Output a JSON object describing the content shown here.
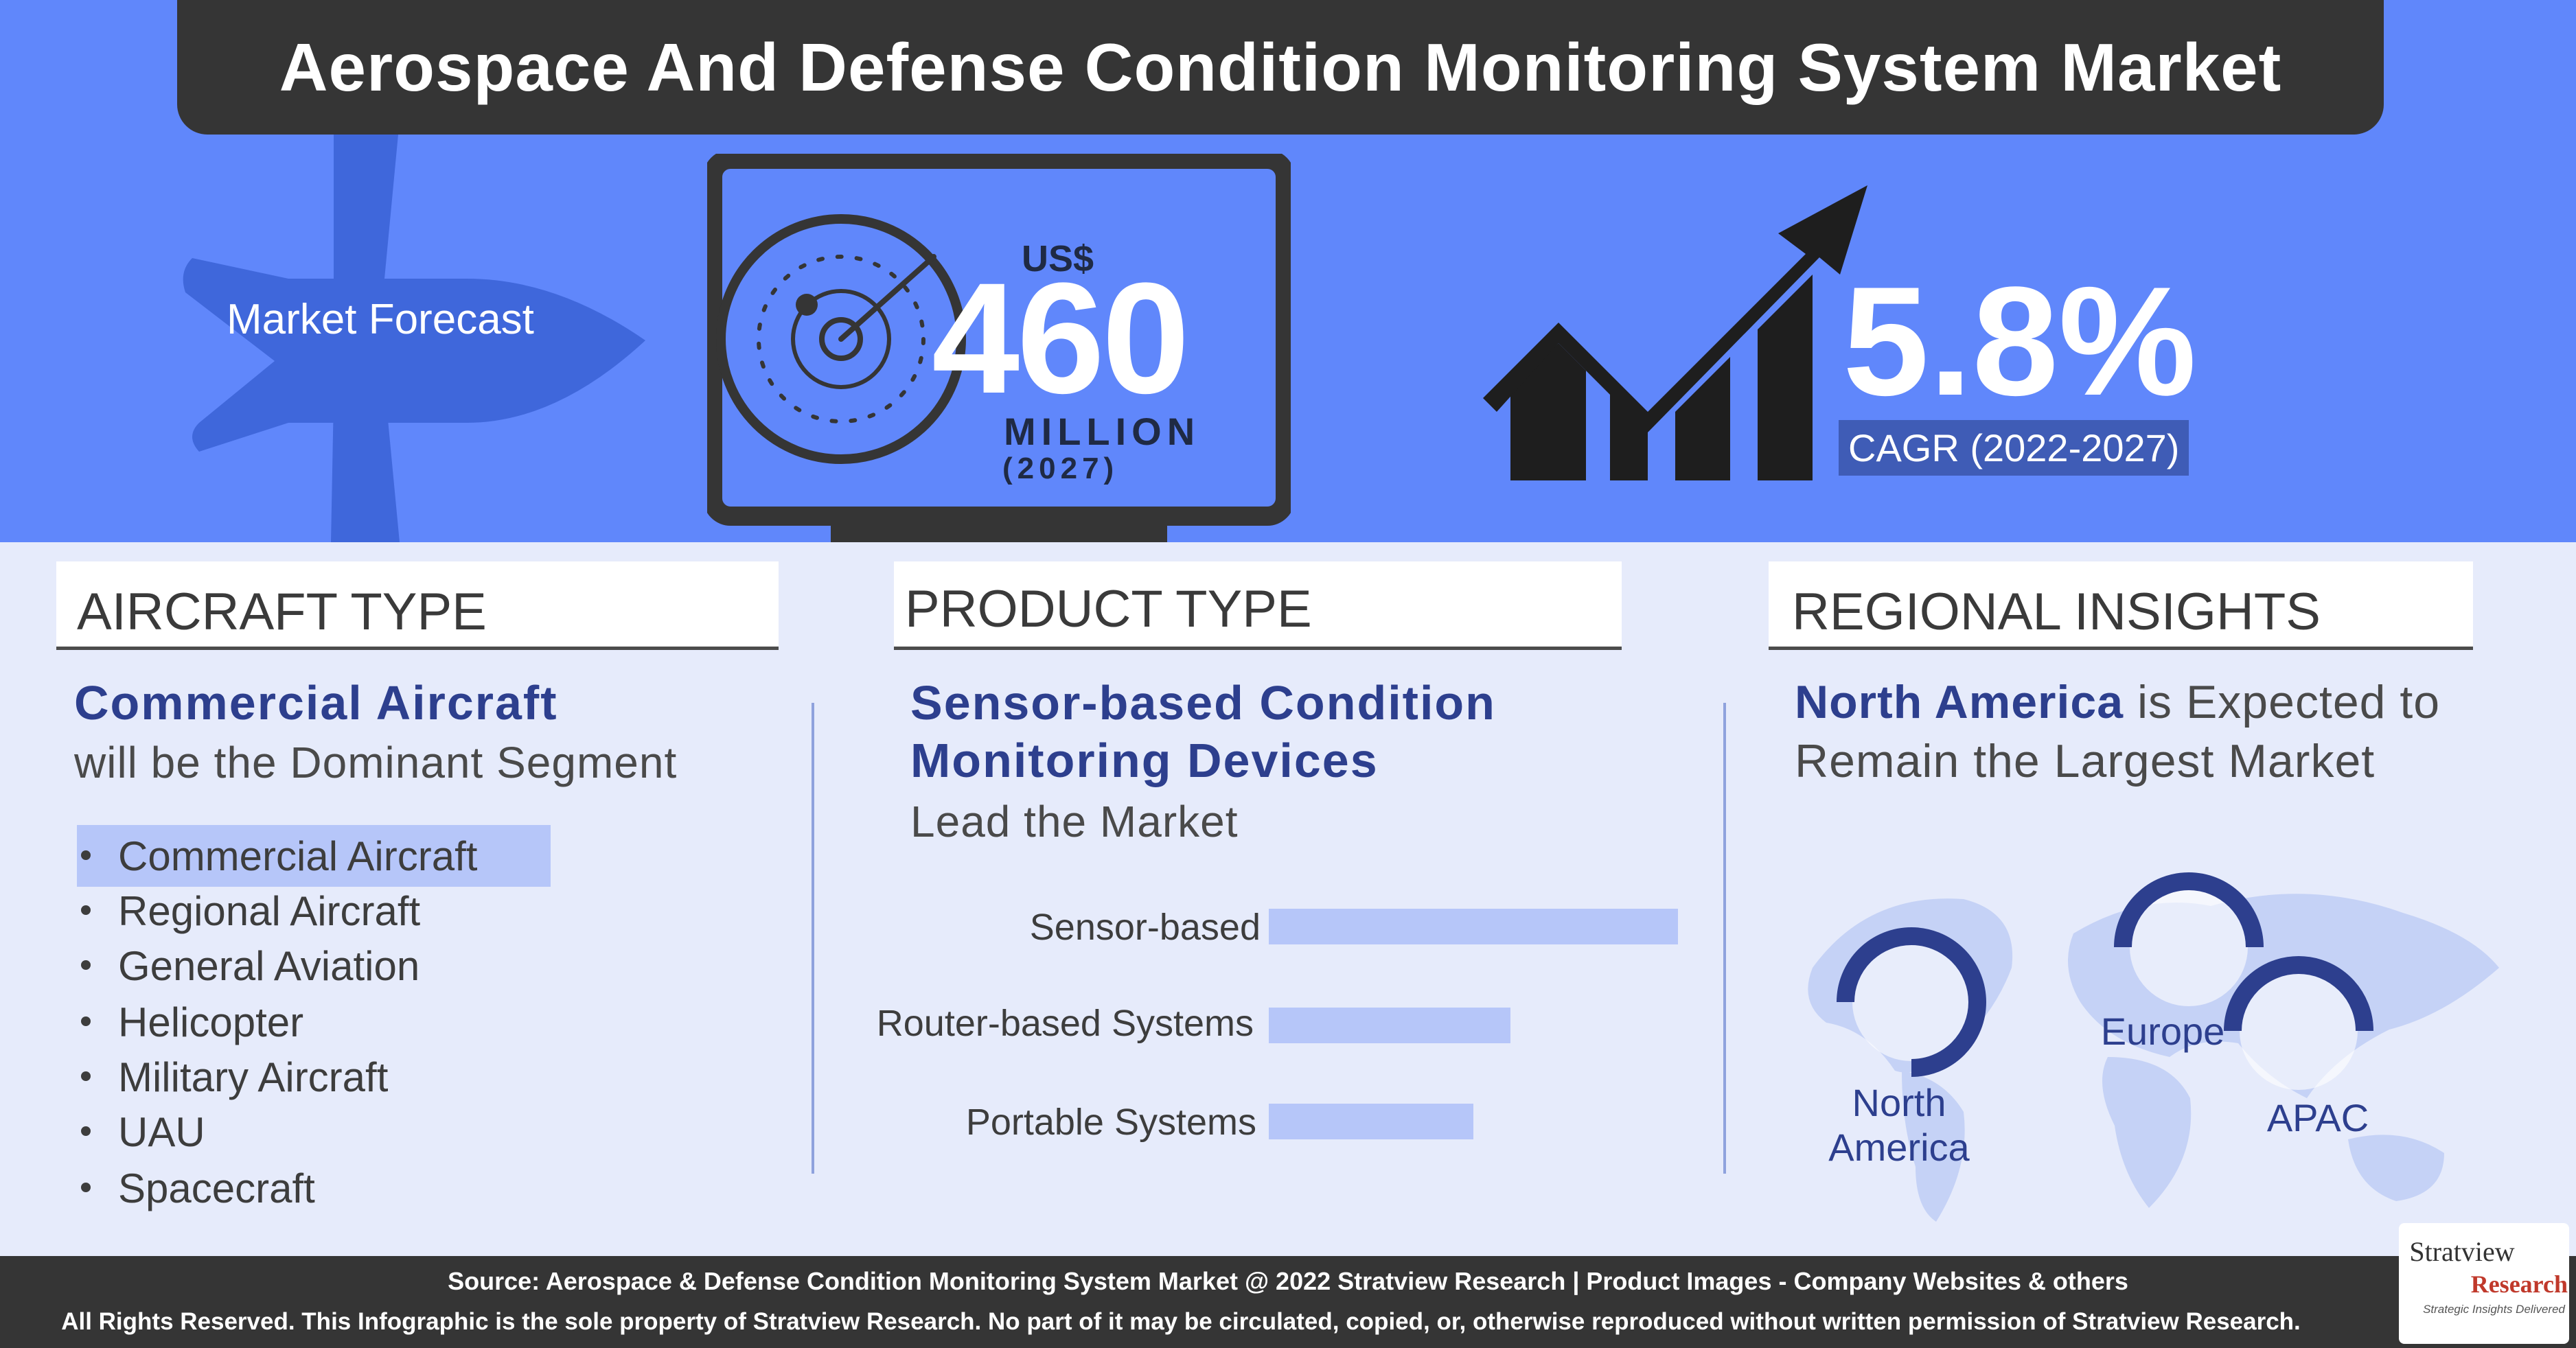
{
  "header": {
    "title": "Aerospace And Defense Condition Monitoring System Market"
  },
  "forecast": {
    "label": "Market Forecast",
    "currency": "US$",
    "value": "460",
    "unit": "MILLION",
    "year": "(2027)"
  },
  "growth": {
    "value": "5.8%",
    "label": "CAGR (2022-2027)"
  },
  "aircraft_type": {
    "title": "AIRCRAFT TYPE",
    "headline_strong": "Commercial Aircraft",
    "headline_rest": "will be the Dominant Segment",
    "items": [
      "Commercial Aircraft",
      "Regional Aircraft",
      "General Aviation",
      "Helicopter",
      "Military Aircraft",
      "UAU",
      "Spacecraft"
    ],
    "highlighted_item": "Commercial Aircraft"
  },
  "product_type": {
    "title": "PRODUCT TYPE",
    "headline_line1": "Sensor-based Condition",
    "headline_line2": "Monitoring Devices",
    "headline_rest": "Lead the Market",
    "bars": [
      {
        "label": "Sensor-based",
        "value": 100
      },
      {
        "label": "Router-based Systems",
        "value": 59
      },
      {
        "label": "Portable Systems",
        "value": 50
      }
    ]
  },
  "regional": {
    "title": "REGIONAL INSIGHTS",
    "headline_strong": "North America",
    "headline_rest": "is Expected to",
    "headline_line2": "Remain the Largest Market",
    "regions": [
      {
        "name_line1": "North",
        "name_line2": "America",
        "share": 0.75
      },
      {
        "name_line1": "Europe",
        "name_line2": "",
        "share": 0.5
      },
      {
        "name_line1": "APAC",
        "name_line2": "",
        "share": 0.5
      }
    ]
  },
  "footer": {
    "source": "Source: Aerospace & Defense Condition Monitoring System Market @ 2022 Stratview Research  |  Product Images  - Company Websites & others",
    "rights": "All Rights Reserved. This Infographic is the sole property of Stratview Research. No part of it may be circulated, copied, or, otherwise reproduced without written permission of Stratview Research."
  },
  "logo": {
    "name_line1": "Stratview",
    "name_line2": "Research",
    "tagline": "Strategic Insights Delivered"
  },
  "colors": {
    "top_band": "#6087fb",
    "accent_dark": "#2d3f8e",
    "bar": "#b6c6f9",
    "background": "#e6ebfb"
  },
  "icons": [
    "airplane-icon",
    "radar-monitor-icon",
    "growth-chart-icon",
    "world-map-icon"
  ]
}
